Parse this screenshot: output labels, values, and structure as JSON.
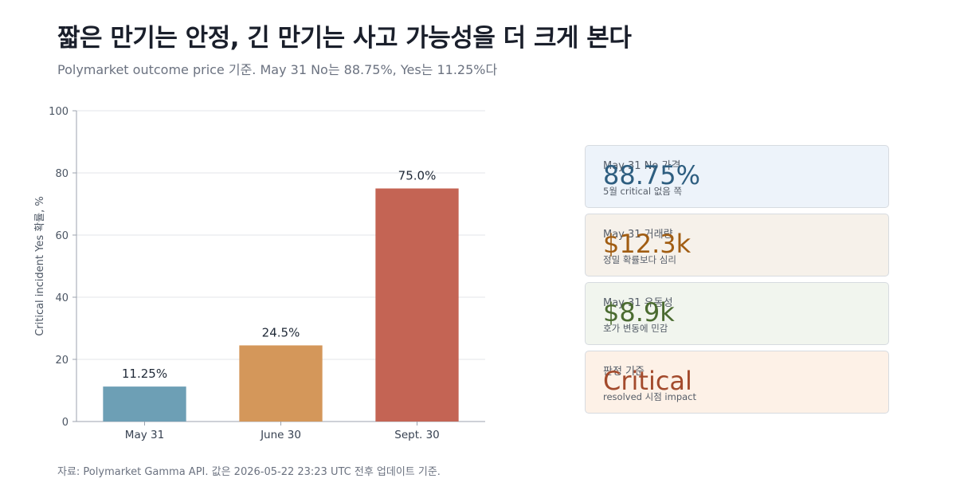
{
  "header": {
    "title": "짧은 만기는 안정, 긴 만기는 사고 가능성을 더 크게 본다",
    "subtitle": "Polymarket outcome price 기준. May 31 No는 88.75%, Yes는 11.25%다"
  },
  "chart_data": {
    "type": "bar",
    "categories": [
      "May 31",
      "June 30",
      "Sept. 30"
    ],
    "values": [
      11.25,
      24.5,
      75.0
    ],
    "value_labels": [
      "11.25%",
      "24.5%",
      "75.0%"
    ],
    "colors": [
      "#6d9fb5",
      "#d4975a",
      "#c46454"
    ],
    "ylabel": "Critical incident Yes 확률, %",
    "xlabel": "",
    "ylim": [
      0,
      100
    ],
    "yticks": [
      0,
      20,
      40,
      60,
      80,
      100
    ],
    "grid": true
  },
  "cards": [
    {
      "label": "May 31 No 가격",
      "value": "88.75%",
      "note": "5월 critical 없음 쪽",
      "value_color": "#2e5e80",
      "bg": "#edf3fa"
    },
    {
      "label": "May 31 거래량",
      "value": "$12.3k",
      "note": "정밀 확률보다 심리",
      "value_color": "#a15d12",
      "bg": "#f6f1ea"
    },
    {
      "label": "May 31 유동성",
      "value": "$8.9k",
      "note": "호가 변동에 민감",
      "value_color": "#4a6b30",
      "bg": "#f1f5ee"
    },
    {
      "label": "판정 기준",
      "value": "Critical",
      "note": "resolved 시점 impact",
      "value_color": "#a34a2c",
      "bg": "#fdf1e7"
    }
  ],
  "footer": {
    "source": "자료: Polymarket Gamma API. 값은 2026-05-22 23:23 UTC 전후 업데이트 기준."
  }
}
